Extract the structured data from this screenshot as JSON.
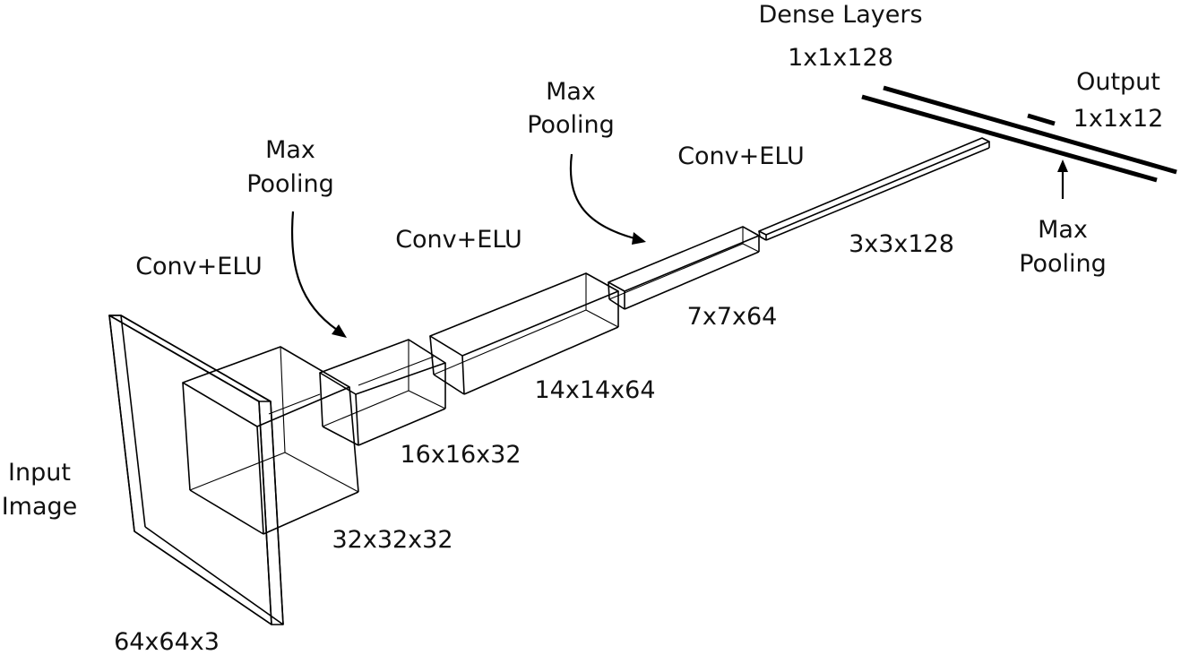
{
  "diagram": {
    "labels": {
      "input_title_line1": "Input",
      "input_title_line2": "Image",
      "input_size": "64x64x3",
      "conv1_label": "Conv+ELU",
      "conv1_size": "32x32x32",
      "pool1_line1": "Max",
      "pool1_line2": "Pooling",
      "pool1_size": "16x16x32",
      "conv2_label": "Conv+ELU",
      "conv2_size": "14x14x64",
      "pool2_line1": "Max",
      "pool2_line2": "Pooling",
      "pool2_size": "7x7x64",
      "conv3_label": "Conv+ELU",
      "conv3_size": "3x3x128",
      "pool3_line1": "Max",
      "pool3_line2": "Pooling",
      "dense_title": "Dense Layers",
      "dense_size": "1x1x128",
      "output_title": "Output",
      "output_size": "1x1x12"
    },
    "stroke_color": "#000000",
    "background": "#ffffff"
  }
}
